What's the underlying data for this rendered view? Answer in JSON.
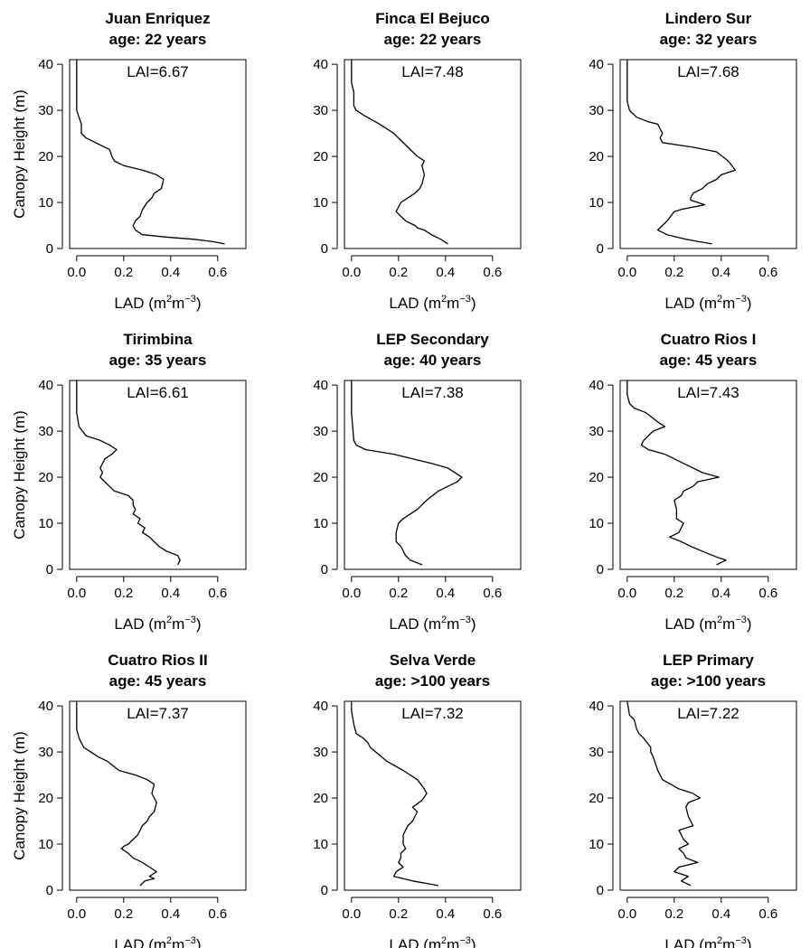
{
  "figure": {
    "ylabel": "Canopy Height (m)",
    "xlabel_main": "LAD (m",
    "xlabel_sup1": "2",
    "xlabel_mid": "m",
    "xlabel_sup2": "−3",
    "xlabel_end": ")",
    "xticks": [
      "0.0",
      "0.2",
      "0.4",
      "0.6"
    ],
    "yticks": [
      "0",
      "10",
      "20",
      "30",
      "40"
    ]
  },
  "chart_data": [
    {
      "type": "line",
      "title": "Juan Enriquez",
      "subtitle": "age: 22 years",
      "annotation": "LAI=6.67",
      "xlim": [
        -0.03,
        0.72
      ],
      "ylim": [
        0,
        41
      ],
      "series": [
        {
          "x": [
            0,
            0,
            0.01,
            0.02,
            0.02,
            0.04,
            0.08,
            0.12,
            0.14,
            0.15,
            0.16,
            0.2,
            0.28,
            0.34,
            0.37,
            0.36,
            0.33,
            0.32,
            0.3,
            0.28,
            0.27,
            0.25,
            0.24,
            0.25,
            0.28,
            0.38,
            0.5,
            0.58,
            0.63
          ],
          "y": [
            41,
            30,
            28.5,
            27,
            25,
            24,
            23,
            22,
            21.5,
            20,
            19,
            18,
            17,
            16,
            15,
            13,
            12,
            11,
            10,
            8.5,
            7,
            6,
            5,
            4,
            3,
            2.5,
            2,
            1.5,
            1
          ]
        }
      ]
    },
    {
      "type": "line",
      "title": "Finca El Bejuco",
      "subtitle": "age: 22 years",
      "annotation": "LAI=7.48",
      "xlim": [
        -0.03,
        0.72
      ],
      "ylim": [
        0,
        41
      ],
      "series": [
        {
          "x": [
            0,
            0,
            0.01,
            0.01,
            0.02,
            0.05,
            0.12,
            0.18,
            0.24,
            0.28,
            0.31,
            0.3,
            0.31,
            0.3,
            0.29,
            0.28,
            0.27,
            0.24,
            0.21,
            0.19,
            0.21,
            0.23,
            0.27,
            0.28,
            0.31,
            0.34,
            0.38,
            0.41
          ],
          "y": [
            41,
            36,
            34,
            31,
            30,
            29,
            27,
            25,
            22,
            20,
            19,
            18,
            16,
            14,
            13,
            12.5,
            12,
            11,
            10,
            8,
            7,
            6,
            5,
            4.5,
            4,
            3,
            2,
            1
          ]
        }
      ]
    },
    {
      "type": "line",
      "title": "Lindero Sur",
      "subtitle": "age: 32 years",
      "annotation": "LAI=7.68",
      "xlim": [
        -0.03,
        0.72
      ],
      "ylim": [
        0,
        41
      ],
      "series": [
        {
          "x": [
            0,
            0,
            0.01,
            0.04,
            0.09,
            0.13,
            0.14,
            0.15,
            0.14,
            0.15,
            0.28,
            0.38,
            0.43,
            0.46,
            0.4,
            0.38,
            0.34,
            0.32,
            0.28,
            0.27,
            0.27,
            0.3,
            0.33,
            0.23,
            0.2,
            0.17,
            0.13,
            0.17,
            0.25,
            0.36
          ],
          "y": [
            41,
            32,
            30,
            28.5,
            27.5,
            27,
            26,
            25,
            24,
            23,
            22,
            21,
            19,
            17,
            16,
            15,
            14,
            13,
            12,
            11,
            10.5,
            10,
            9.5,
            8.5,
            8,
            6,
            4,
            3,
            2,
            1
          ]
        }
      ]
    },
    {
      "type": "line",
      "title": "Tirimbina",
      "subtitle": "age: 35 years",
      "annotation": "LAI=6.61",
      "xlim": [
        -0.03,
        0.72
      ],
      "ylim": [
        0,
        41
      ],
      "series": [
        {
          "x": [
            0,
            0,
            0.01,
            0.04,
            0.1,
            0.14,
            0.17,
            0.15,
            0.12,
            0.1,
            0.11,
            0.1,
            0.12,
            0.16,
            0.22,
            0.24,
            0.24,
            0.25,
            0.24,
            0.27,
            0.26,
            0.29,
            0.28,
            0.31,
            0.35,
            0.38,
            0.43,
            0.44,
            0.43
          ],
          "y": [
            41,
            34,
            31,
            29,
            28,
            27,
            26,
            25,
            24,
            22,
            21,
            20,
            19,
            17,
            16,
            15,
            14,
            13,
            12,
            11,
            10,
            9,
            8,
            7,
            5,
            4,
            3,
            2,
            1
          ]
        }
      ]
    },
    {
      "type": "line",
      "title": "LEP Secondary",
      "subtitle": "age: 40 years",
      "annotation": "LAI=7.38",
      "xlim": [
        -0.03,
        0.72
      ],
      "ylim": [
        0,
        41
      ],
      "series": [
        {
          "x": [
            0,
            0,
            0.01,
            0.02,
            0.06,
            0.18,
            0.34,
            0.41,
            0.47,
            0.45,
            0.41,
            0.37,
            0.32,
            0.28,
            0.25,
            0.22,
            0.2,
            0.19,
            0.19,
            0.21,
            0.23,
            0.25,
            0.3
          ],
          "y": [
            41,
            34,
            28,
            27,
            26,
            25,
            23,
            22,
            20,
            19,
            18,
            17,
            15,
            13,
            12,
            11,
            10,
            8,
            6,
            5,
            3,
            2,
            1
          ]
        }
      ]
    },
    {
      "type": "line",
      "title": "Cuatro Rios I",
      "subtitle": "age: 45 years",
      "annotation": "LAI=7.43",
      "xlim": [
        -0.03,
        0.72
      ],
      "ylim": [
        0,
        41
      ],
      "series": [
        {
          "x": [
            0,
            0,
            0.01,
            0.03,
            0.08,
            0.13,
            0.16,
            0.11,
            0.07,
            0.06,
            0.09,
            0.16,
            0.24,
            0.32,
            0.39,
            0.3,
            0.28,
            0.24,
            0.23,
            0.2,
            0.21,
            0.21,
            0.24,
            0.23,
            0.22,
            0.2,
            0.18,
            0.23,
            0.27,
            0.34,
            0.39,
            0.42,
            0.38
          ],
          "y": [
            41,
            38,
            36,
            35,
            34,
            32,
            31,
            30,
            28,
            27,
            26,
            25,
            23,
            21,
            20,
            19,
            18,
            17,
            16,
            15,
            13,
            11,
            10,
            9,
            8,
            7.5,
            7,
            6,
            5,
            3.5,
            2.5,
            2,
            1
          ]
        }
      ]
    },
    {
      "type": "line",
      "title": "Cuatro Rios II",
      "subtitle": "age: 45 years",
      "annotation": "LAI=7.37",
      "xlim": [
        -0.03,
        0.72
      ],
      "ylim": [
        0,
        41
      ],
      "series": [
        {
          "x": [
            0,
            0,
            0.01,
            0.03,
            0.06,
            0.09,
            0.13,
            0.18,
            0.25,
            0.3,
            0.33,
            0.32,
            0.34,
            0.33,
            0.31,
            0.3,
            0.28,
            0.27,
            0.26,
            0.24,
            0.22,
            0.2,
            0.19,
            0.22,
            0.24,
            0.28,
            0.31,
            0.34,
            0.31,
            0.33,
            0.29,
            0.27
          ],
          "y": [
            41,
            35,
            33,
            31,
            30,
            29,
            28,
            26,
            25,
            24,
            23,
            21,
            19,
            17,
            16,
            15,
            14,
            13,
            12,
            11,
            10,
            9.5,
            9,
            8,
            7,
            6,
            5,
            4,
            3,
            2.5,
            2,
            1
          ]
        }
      ]
    },
    {
      "type": "line",
      "title": "Selva Verde",
      "subtitle": "age: >100 years",
      "annotation": "LAI=7.32",
      "xlim": [
        -0.03,
        0.72
      ],
      "ylim": [
        0,
        41
      ],
      "series": [
        {
          "x": [
            0,
            0,
            0.01,
            0.02,
            0.05,
            0.07,
            0.08,
            0.15,
            0.22,
            0.28,
            0.31,
            0.32,
            0.3,
            0.26,
            0.28,
            0.26,
            0.24,
            0.23,
            0.22,
            0.22,
            0.23,
            0.21,
            0.21,
            0.2,
            0.22,
            0.19,
            0.18,
            0.26,
            0.37
          ],
          "y": [
            41,
            39,
            36,
            34,
            33,
            32,
            31,
            28,
            26,
            24,
            22,
            21,
            19.5,
            18,
            17,
            15,
            14,
            13,
            12,
            10,
            9,
            8,
            7,
            6,
            5,
            4,
            3,
            2,
            1
          ]
        }
      ]
    },
    {
      "type": "line",
      "title": "LEP Primary",
      "subtitle": "age: >100 years",
      "annotation": "LAI=7.22",
      "xlim": [
        -0.03,
        0.72
      ],
      "ylim": [
        0,
        41
      ],
      "series": [
        {
          "x": [
            0,
            0.01,
            0.03,
            0.04,
            0.05,
            0.07,
            0.1,
            0.1,
            0.11,
            0.13,
            0.15,
            0.22,
            0.28,
            0.31,
            0.26,
            0.25,
            0.26,
            0.28,
            0.22,
            0.24,
            0.26,
            0.22,
            0.24,
            0.25,
            0.3,
            0.22,
            0.2,
            0.26,
            0.23,
            0.27
          ],
          "y": [
            41,
            38,
            37,
            35,
            34,
            33,
            31,
            30,
            29,
            26,
            24,
            22,
            21,
            20,
            19,
            18,
            16,
            14,
            13,
            11,
            10,
            9,
            8,
            7,
            6,
            5,
            4,
            3,
            2,
            1
          ]
        }
      ]
    }
  ]
}
